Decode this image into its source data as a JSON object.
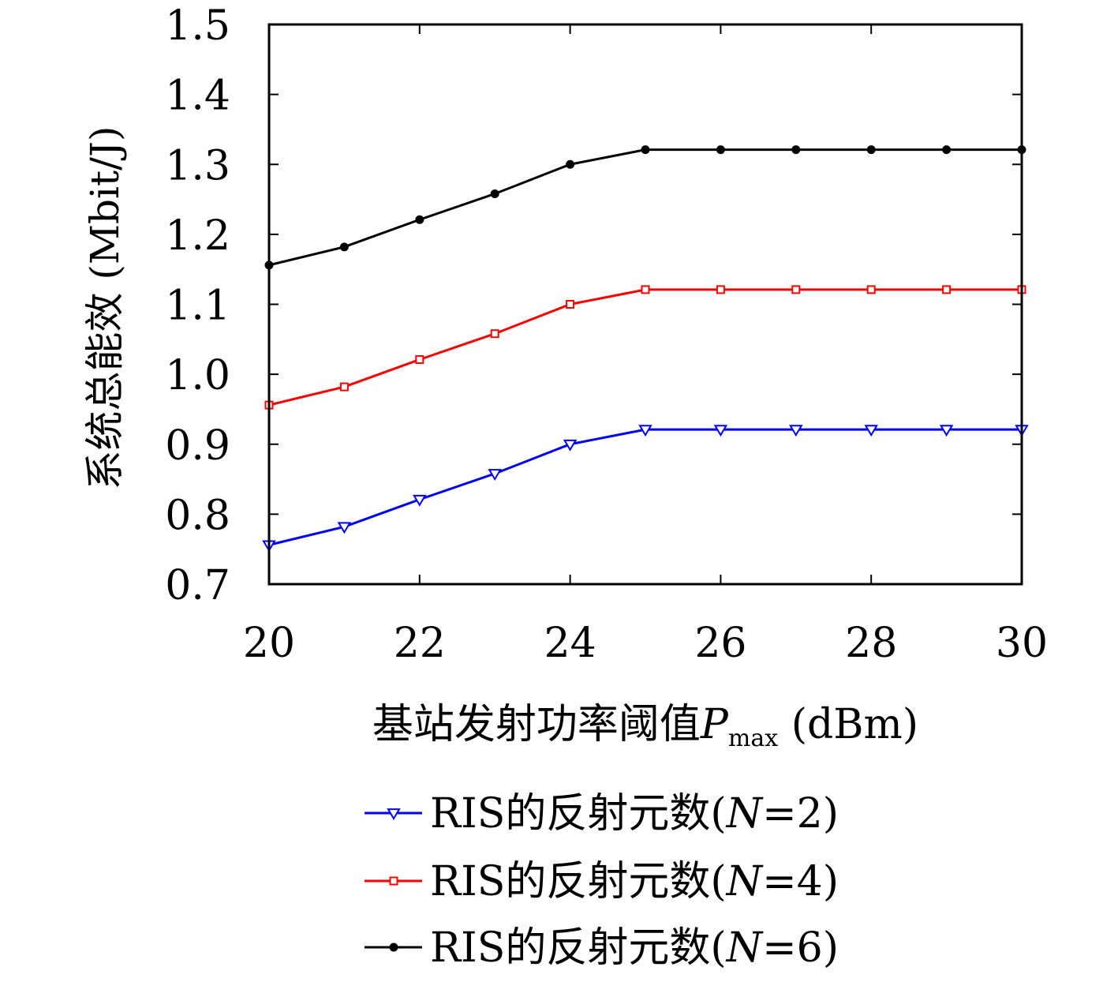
{
  "chart_data": {
    "type": "line",
    "xlabel": "基站发射功率阈值",
    "xlabel_var": "P",
    "xlabel_sub": "max",
    "xlabel_unit": " (dBm)",
    "ylabel": "系统总能效 (Mbit/J)",
    "xlim": [
      20,
      30
    ],
    "ylim": [
      0.7,
      1.5
    ],
    "xticks": [
      20,
      22,
      24,
      26,
      28,
      30
    ],
    "xtick_labels": [
      "20",
      "22",
      "24",
      "26",
      "28",
      "30"
    ],
    "yticks": [
      0.7,
      0.8,
      0.9,
      1.0,
      1.1,
      1.2,
      1.3,
      1.4,
      1.5
    ],
    "ytick_labels": [
      "0.7",
      "0.8",
      "0.9",
      "1.0",
      "1.1",
      "1.2",
      "1.3",
      "1.4",
      "1.5"
    ],
    "grid": false,
    "legend_position": "below",
    "x": [
      20,
      21,
      22,
      23,
      24,
      25,
      26,
      27,
      28,
      29,
      30
    ],
    "series": [
      {
        "name": "RIS的反射元数(N=2)",
        "label_prefix": "RIS的反射元数(",
        "label_var": "N",
        "label_suffix": "=2)",
        "color": "#0000ff",
        "marker": "triangle-down",
        "values": [
          0.756,
          0.782,
          0.821,
          0.858,
          0.9,
          0.921,
          0.921,
          0.921,
          0.921,
          0.921,
          0.921
        ]
      },
      {
        "name": "RIS的反射元数(N=4)",
        "label_prefix": "RIS的反射元数(",
        "label_var": "N",
        "label_suffix": "=4)",
        "color": "#ff0000",
        "marker": "square",
        "values": [
          0.956,
          0.982,
          1.021,
          1.058,
          1.1,
          1.121,
          1.121,
          1.121,
          1.121,
          1.121,
          1.121
        ]
      },
      {
        "name": "RIS的反射元数(N=6)",
        "label_prefix": "RIS的反射元数(",
        "label_var": "N",
        "label_suffix": "=6)",
        "color": "#000000",
        "marker": "dot",
        "values": [
          1.156,
          1.182,
          1.221,
          1.258,
          1.3,
          1.321,
          1.321,
          1.321,
          1.321,
          1.321,
          1.321
        ]
      }
    ]
  }
}
